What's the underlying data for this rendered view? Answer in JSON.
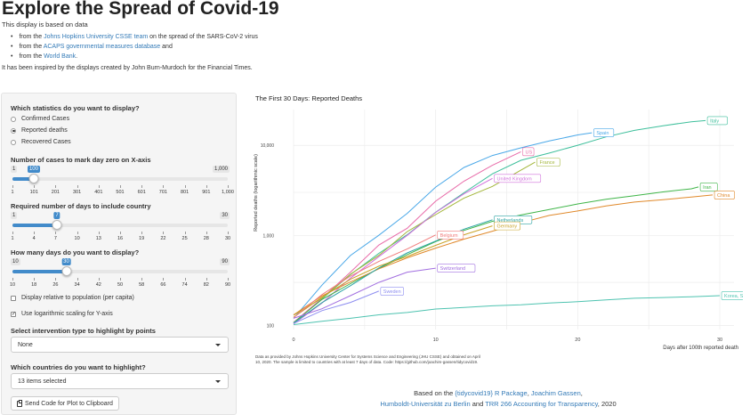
{
  "page": {
    "title": "Explore the Spread of Covid-19",
    "intro": "This display is based on data",
    "sources": [
      {
        "pre": "from the ",
        "link": "Johns Hopkins University CSSE team",
        "post": " on the spread of the SARS-CoV-2 virus"
      },
      {
        "pre": "from the ",
        "link": "ACAPS governmental measures database",
        "post": " and"
      },
      {
        "pre": "from the ",
        "link": "World Bank",
        "post": "."
      }
    ],
    "inspired": "It has been inspired by the displays created by John Burn-Murdoch for the Financial Times."
  },
  "controls": {
    "stat_label": "Which statistics do you want to display?",
    "stat_options": [
      "Confirmed Cases",
      "Reported deaths",
      "Recovered Cases"
    ],
    "stat_selected": 1,
    "slider_cases": {
      "label": "Number of cases to mark day zero on X-axis",
      "min": "1",
      "max": "1,000",
      "value": "100",
      "fraction": 0.099,
      "ticks": [
        "1",
        "101",
        "201",
        "301",
        "401",
        "501",
        "601",
        "701",
        "801",
        "901",
        "1,000"
      ]
    },
    "slider_days": {
      "label": "Required number of days to include country",
      "min": "1",
      "max": "30",
      "value": "7",
      "fraction": 0.207,
      "ticks": [
        "1",
        "4",
        "7",
        "10",
        "13",
        "16",
        "19",
        "22",
        "25",
        "28",
        "30"
      ]
    },
    "slider_display": {
      "label": "How many days do you want to display?",
      "min": "10",
      "max": "90",
      "value": "30",
      "fraction": 0.25,
      "ticks": [
        "10",
        "18",
        "26",
        "34",
        "42",
        "50",
        "58",
        "66",
        "74",
        "82",
        "90"
      ]
    },
    "check_relative": {
      "label": "Display relative to population (per capita)",
      "checked": false
    },
    "check_log": {
      "label": "Use logarithmic scaling for Y-axis",
      "checked": true
    },
    "intervention_label": "Select intervention type to highlight by points",
    "intervention_value": "None",
    "countries_label": "Which countries do you want to highlight?",
    "countries_value": "13 items selected",
    "send_button": "Send Code for Plot to Clipboard"
  },
  "chart_data": {
    "type": "line",
    "title": "The First 30 Days: Reported Deaths",
    "xlabel": "Days after 100th reported death",
    "ylabel": "Reported deaths (logarithmic scale)",
    "y_scale": "log",
    "xlim": [
      0,
      31
    ],
    "ylim": [
      90,
      25000
    ],
    "x_ticks": [
      "0",
      "10",
      "20",
      "30"
    ],
    "y_ticks": [
      "100",
      "1,000",
      "10,000"
    ],
    "series": [
      {
        "name": "Italy",
        "color": "#3dbf9b",
        "x": [
          0,
          2,
          4,
          6,
          8,
          10,
          12,
          14,
          16,
          18,
          20,
          22,
          24,
          26,
          28,
          29
        ],
        "y": [
          107,
          197,
          366,
          631,
          1016,
          1809,
          2978,
          4825,
          6820,
          8215,
          10023,
          12428,
          14681,
          16523,
          18279,
          18849
        ]
      },
      {
        "name": "Spain",
        "color": "#4aa8e8",
        "x": [
          0,
          2,
          4,
          6,
          8,
          10,
          12,
          14,
          16,
          18,
          20,
          21
        ],
        "y": [
          120,
          280,
          598,
          1002,
          1756,
          3434,
          5690,
          7716,
          9387,
          11198,
          13055,
          13798
        ]
      },
      {
        "name": "US",
        "color": "#e86aa8",
        "x": [
          0,
          2,
          4,
          6,
          8,
          10,
          12,
          14,
          16
        ],
        "y": [
          108,
          200,
          390,
          780,
          1200,
          2400,
          4000,
          6000,
          8500
        ]
      },
      {
        "name": "France",
        "color": "#a3b63a",
        "x": [
          0,
          2,
          4,
          6,
          8,
          10,
          12,
          14,
          16,
          17
        ],
        "y": [
          130,
          200,
          370,
          600,
          1100,
          1700,
          2600,
          3500,
          5300,
          6500
        ]
      },
      {
        "name": "United Kingdom",
        "color": "#d070dc",
        "x": [
          0,
          2,
          4,
          6,
          8,
          10,
          12,
          14
        ],
        "y": [
          104,
          177,
          335,
          580,
          1000,
          1800,
          2900,
          4300
        ]
      },
      {
        "name": "Iran",
        "color": "#3fb548",
        "x": [
          0,
          2,
          4,
          6,
          8,
          10,
          12,
          14,
          16,
          18,
          20,
          22,
          24,
          26,
          28,
          28.5
        ],
        "y": [
          107,
          194,
          291,
          429,
          611,
          853,
          1135,
          1433,
          1685,
          1934,
          2234,
          2517,
          2757,
          3036,
          3294,
          3450
        ]
      },
      {
        "name": "China",
        "color": "#e0892b",
        "x": [
          0,
          2,
          4,
          6,
          8,
          10,
          12,
          14,
          16,
          18,
          20,
          22,
          24,
          26,
          28,
          29.5
        ],
        "y": [
          131,
          213,
          304,
          425,
          563,
          722,
          908,
          1113,
          1380,
          1665,
          1868,
          2126,
          2345,
          2495,
          2665,
          2810
        ]
      },
      {
        "name": "Netherlands",
        "color": "#2ca4a4",
        "x": [
          0,
          2,
          4,
          6,
          8,
          10,
          12,
          14
        ],
        "y": [
          106,
          179,
          276,
          434,
          639,
          864,
          1173,
          1490
        ]
      },
      {
        "name": "Germany",
        "color": "#c9a227",
        "x": [
          0,
          2,
          4,
          6,
          8,
          10,
          12,
          14
        ],
        "y": [
          123,
          206,
          325,
          455,
          583,
          775,
          1017,
          1275
        ]
      },
      {
        "name": "Belgium",
        "color": "#f07b7b",
        "x": [
          0,
          2,
          4,
          6,
          8,
          10
        ],
        "y": [
          122,
          220,
          353,
          513,
          705,
          1011
        ]
      },
      {
        "name": "Switzerland",
        "color": "#a26fe0",
        "x": [
          0,
          2,
          4,
          6,
          8,
          10
        ],
        "y": [
          120,
          153,
          214,
          300,
          390,
          432
        ]
      },
      {
        "name": "Sweden",
        "color": "#8e8ef0",
        "x": [
          0,
          2,
          4,
          6
        ],
        "y": [
          105,
          146,
          180,
          240
        ]
      },
      {
        "name": "Korea, South",
        "color": "#4ec3b0",
        "x": [
          0,
          2,
          4,
          6,
          8,
          10,
          12,
          14,
          16,
          18,
          20,
          22,
          24,
          26,
          28,
          30
        ],
        "y": [
          102,
          111,
          120,
          131,
          139,
          152,
          158,
          165,
          169,
          177,
          183,
          192,
          200,
          204,
          208,
          214
        ]
      }
    ]
  },
  "chart_note": "Data as provided by Johns Hopkins University Center for Systems Science and Engineering (JHU CSSE) and obtained on April 10, 2020. The sample is limited to countries with at least 7 days of data. Code: https://github.com/joachim-gassen/tidycovid19.",
  "credit": {
    "pre": "Based on the ",
    "pkg": "{tidycovid19} R Package",
    "sep1": ", ",
    "author": "Joachim Gassen",
    "sep2": ",",
    "uni": "Humboldt-Universität zu Berlin",
    "and": " and ",
    "trr": "TRR 266 Accounting for Transparency",
    "year": ", 2020"
  }
}
